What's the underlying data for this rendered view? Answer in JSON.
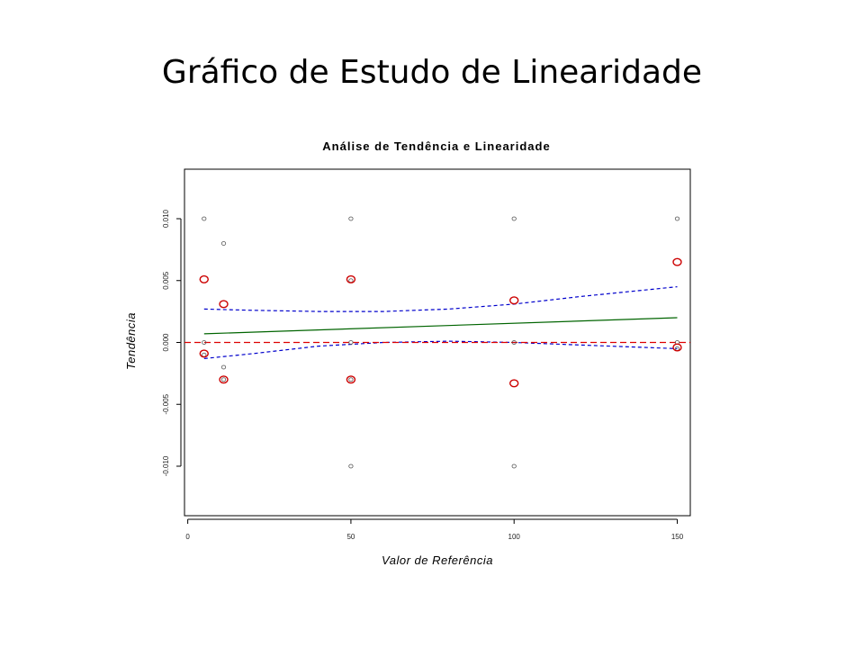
{
  "slide": {
    "title": "Gráfico de Estudo de Linearidade"
  },
  "chart_data": {
    "type": "scatter",
    "title": "Análise de Tendência e Linearidade",
    "xlabel": "Valor de Referência",
    "ylabel": "Tendência",
    "xlim": [
      -1,
      154
    ],
    "ylim": [
      -0.014,
      0.014
    ],
    "x_ticks": [
      0,
      50,
      100,
      150
    ],
    "y_ticks": [
      -0.01,
      -0.005,
      0.0,
      0.005,
      0.01
    ],
    "y_tick_labels": [
      "-0.010",
      "-0.005",
      "0.000",
      "0.005",
      "0.010"
    ],
    "grid": false,
    "legend": "none",
    "series": [
      {
        "kind": "individual-points",
        "color": "#555555",
        "points": [
          [
            5,
            0.01
          ],
          [
            5,
            0.0
          ],
          [
            5,
            -0.001
          ],
          [
            11,
            0.008
          ],
          [
            11,
            -0.002
          ],
          [
            11,
            -0.003
          ],
          [
            50,
            0.01
          ],
          [
            50,
            0.005
          ],
          [
            50,
            0.0
          ],
          [
            50,
            -0.003
          ],
          [
            50,
            -0.01
          ],
          [
            100,
            0.01
          ],
          [
            100,
            0.0
          ],
          [
            100,
            -0.01
          ],
          [
            150,
            0.01
          ],
          [
            150,
            0.0
          ],
          [
            150,
            -0.0005
          ]
        ]
      },
      {
        "kind": "mean-points",
        "color": "#cc0000",
        "points": [
          [
            5,
            0.0051
          ],
          [
            5,
            -0.0009
          ],
          [
            11,
            0.0031
          ],
          [
            11,
            -0.003
          ],
          [
            50,
            0.0051
          ],
          [
            50,
            -0.003
          ],
          [
            100,
            0.0034
          ],
          [
            100,
            -0.0033
          ],
          [
            150,
            0.0065
          ],
          [
            150,
            -0.0004
          ]
        ]
      },
      {
        "kind": "regression-line",
        "color": "#006400",
        "x": [
          5,
          150
        ],
        "y": [
          0.0007,
          0.002
        ]
      },
      {
        "kind": "confidence-upper",
        "color": "#0000cc",
        "dash": true,
        "x": [
          5,
          20,
          40,
          60,
          80,
          100,
          120,
          150
        ],
        "y": [
          0.0027,
          0.0026,
          0.0025,
          0.0025,
          0.0027,
          0.0031,
          0.0037,
          0.0045
        ]
      },
      {
        "kind": "confidence-lower",
        "color": "#0000cc",
        "dash": true,
        "x": [
          5,
          20,
          40,
          60,
          80,
          100,
          120,
          150
        ],
        "y": [
          -0.0013,
          -0.0009,
          -0.0003,
          0.0,
          0.0001,
          0.0,
          -0.0002,
          -0.0005
        ]
      },
      {
        "kind": "zero-reference",
        "color": "#dd0000",
        "dash": true,
        "y": 0.0
      }
    ]
  }
}
